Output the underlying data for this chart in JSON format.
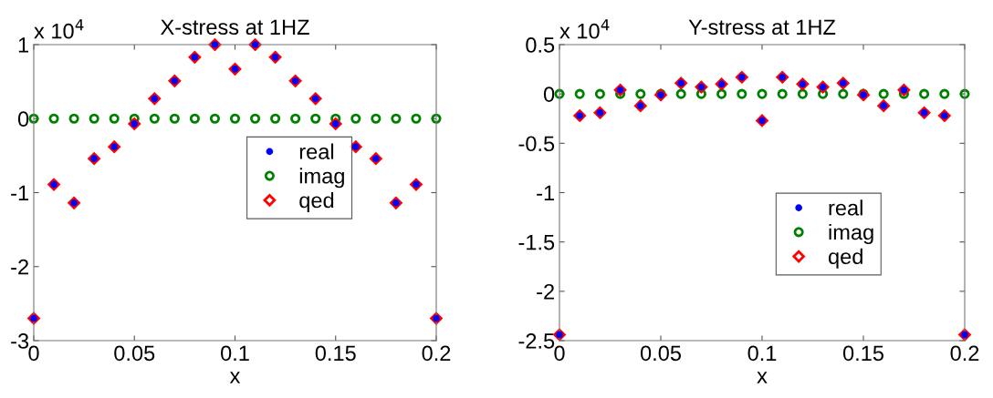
{
  "chart_data": [
    {
      "type": "scatter",
      "title": "X-stress at 1HZ",
      "xlabel": "x",
      "annotations": [
        "x 10$^{4}$"
      ],
      "legend": "center",
      "grid": false,
      "x": [
        0,
        0.01,
        0.02,
        0.03,
        0.04,
        0.05,
        0.06,
        0.07,
        0.08,
        0.09,
        0.1,
        0.11,
        0.12,
        0.13,
        0.14,
        0.15,
        0.16,
        0.17,
        0.18,
        0.19,
        0.2
      ],
      "xlim": [
        0,
        0.2
      ],
      "xticks": [
        0,
        0.05,
        0.1,
        0.15,
        0.2
      ],
      "ylim": [
        -3,
        1
      ],
      "yticks": [
        -3,
        -2,
        -1,
        0,
        1
      ],
      "series": [
        {
          "name": "real",
          "color": "#0000ff",
          "marker": "circle",
          "values": [
            -2.7,
            -0.89,
            -1.14,
            -0.54,
            -0.38,
            -0.07,
            0.27,
            0.51,
            0.83,
            1.0,
            0.67,
            1.0,
            0.83,
            0.51,
            0.27,
            -0.07,
            -0.38,
            -0.54,
            -1.14,
            -0.89,
            -2.7
          ]
        },
        {
          "name": "imag",
          "color": "#008000",
          "marker": "circle",
          "values": [
            0,
            0,
            0,
            0,
            0,
            0,
            0,
            0,
            0,
            0,
            0,
            0,
            0,
            0,
            0,
            0,
            0,
            0,
            0,
            0,
            0
          ]
        },
        {
          "name": "qed",
          "color": "#ff0000",
          "marker": "diamond",
          "values": [
            -2.7,
            -0.89,
            -1.14,
            -0.54,
            -0.38,
            -0.07,
            0.27,
            0.51,
            0.83,
            1.0,
            0.67,
            1.0,
            0.83,
            0.51,
            0.27,
            -0.07,
            -0.38,
            -0.54,
            -1.14,
            -0.89,
            -2.7
          ]
        }
      ]
    },
    {
      "type": "scatter",
      "title": "Y-stress at 1HZ",
      "xlabel": "x",
      "annotations": [
        "x 10$^{4}$"
      ],
      "legend": "center right",
      "grid": false,
      "x": [
        0,
        0.01,
        0.02,
        0.03,
        0.04,
        0.05,
        0.06,
        0.07,
        0.08,
        0.09,
        0.1,
        0.11,
        0.12,
        0.13,
        0.14,
        0.15,
        0.16,
        0.17,
        0.18,
        0.19,
        0.2
      ],
      "xlim": [
        0,
        0.2
      ],
      "xticks": [
        0,
        0.05,
        0.1,
        0.15,
        0.2
      ],
      "ylim": [
        -2.5,
        0.5
      ],
      "yticks": [
        -2.5,
        -2,
        -1.5,
        -1,
        -0.5,
        0,
        0.5
      ],
      "series": [
        {
          "name": "real",
          "color": "#0000ff",
          "marker": "circle",
          "values": [
            -2.44,
            -0.22,
            -0.19,
            0.04,
            -0.12,
            -0.01,
            0.11,
            0.07,
            0.1,
            0.17,
            -0.27,
            0.17,
            0.1,
            0.07,
            0.11,
            -0.01,
            -0.12,
            0.04,
            -0.19,
            -0.22,
            -2.44
          ]
        },
        {
          "name": "imag",
          "color": "#008000",
          "marker": "circle",
          "values": [
            0,
            0,
            0,
            0,
            0,
            0,
            0,
            0,
            0,
            0,
            0,
            0,
            0,
            0,
            0,
            0,
            0,
            0,
            0,
            0,
            0
          ]
        },
        {
          "name": "qed",
          "color": "#ff0000",
          "marker": "diamond",
          "values": [
            -2.44,
            -0.22,
            -0.19,
            0.04,
            -0.12,
            -0.01,
            0.11,
            0.07,
            0.1,
            0.17,
            -0.27,
            0.17,
            0.1,
            0.07,
            0.11,
            -0.01,
            -0.12,
            0.04,
            -0.19,
            -0.22,
            -2.44
          ]
        }
      ]
    }
  ]
}
